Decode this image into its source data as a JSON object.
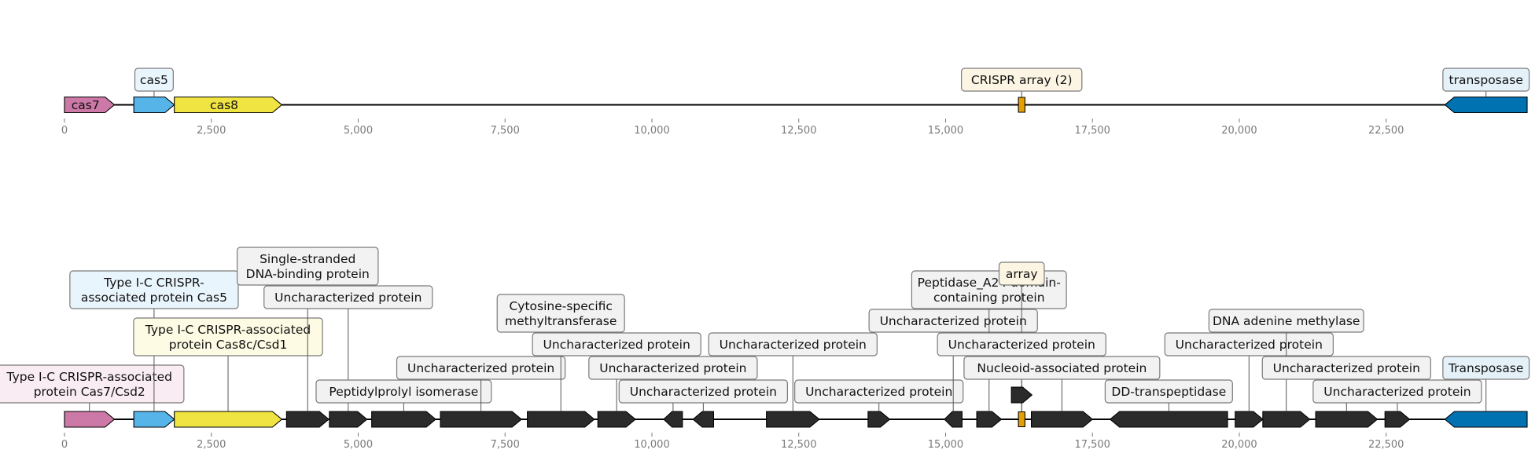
{
  "colors": {
    "cas7": "#cc79a7",
    "cas5": "#56b4e9",
    "cas8": "#f0e442",
    "crispr": "#e69f00",
    "transposase": "#0072b2",
    "other": "#2b2b2b",
    "box_cas7": "#f9ecf3",
    "box_cas5": "#e9f5fc",
    "box_cas8": "#fdfbe3",
    "box_crispr": "#fdf5e4",
    "box_transposase": "#e5f1f9",
    "box_other": "#f2f2f2"
  },
  "axis": {
    "ticks": [
      0,
      2500,
      5000,
      7500,
      10000,
      12500,
      15000,
      17500,
      20000,
      22500
    ],
    "tick_labels": [
      "0",
      "2,500",
      "5,000",
      "7,500",
      "10,000",
      "12,500",
      "15,000",
      "17,500",
      "20,000",
      "22,500"
    ]
  },
  "top_track": {
    "features": [
      {
        "id": "cas7",
        "start": 0,
        "end": 850,
        "strand": 1,
        "color": "cas7",
        "inner_label": "cas7"
      },
      {
        "id": "cas5",
        "start": 1180,
        "end": 1870,
        "strand": 1,
        "color": "cas5",
        "box_label": [
          "cas5"
        ],
        "box_color": "box_cas5",
        "level": 1
      },
      {
        "id": "cas8",
        "start": 1870,
        "end": 3700,
        "strand": 1,
        "color": "cas8",
        "inner_label": "cas8"
      },
      {
        "id": "crispr",
        "start": 16240,
        "end": 16350,
        "strand": 0,
        "color": "crispr",
        "box_label": [
          "CRISPR array (2)"
        ],
        "box_color": "box_crispr",
        "level": 1
      },
      {
        "id": "transposase",
        "start": 23500,
        "end": 24900,
        "strand": -1,
        "color": "transposase",
        "box_label": [
          "transposase"
        ],
        "box_color": "box_transposase",
        "level": 1
      }
    ]
  },
  "bottom_track": {
    "features": [
      {
        "id": "g-cas7",
        "start": 0,
        "end": 850,
        "strand": 1,
        "color": "cas7",
        "box_label": [
          "Type I-C CRISPR-associated",
          "protein Cas7/Csd2"
        ],
        "box_color": "box_cas7",
        "level": 1
      },
      {
        "id": "g-cas5",
        "start": 1180,
        "end": 1870,
        "strand": 1,
        "color": "cas5",
        "box_label": [
          "Type I-C CRISPR-",
          "associated protein Cas5"
        ],
        "box_color": "box_cas5",
        "level": 5
      },
      {
        "id": "g-cas8",
        "start": 1870,
        "end": 3700,
        "strand": 1,
        "color": "cas8",
        "box_label": [
          "Type I-C CRISPR-associated",
          "protein Cas8c/Csd1"
        ],
        "box_color": "box_cas8",
        "level": 3
      },
      {
        "id": "g-ssb",
        "start": 3780,
        "end": 4500,
        "strand": 1,
        "color": "other",
        "box_label": [
          "Single-stranded",
          "DNA-binding protein"
        ],
        "box_color": "box_other",
        "level": 6
      },
      {
        "id": "g-unc1",
        "start": 4510,
        "end": 5150,
        "strand": 1,
        "color": "other",
        "box_label": [
          "Uncharacterized protein"
        ],
        "box_color": "box_other",
        "level": 5
      },
      {
        "id": "g-ppi",
        "start": 5230,
        "end": 6320,
        "strand": 1,
        "color": "other",
        "box_label": [
          "Peptidylprolyl isomerase"
        ],
        "box_color": "box_other",
        "level": 1
      },
      {
        "id": "g-unc2",
        "start": 6400,
        "end": 7780,
        "strand": 1,
        "color": "other",
        "box_label": [
          "Uncharacterized protein"
        ],
        "box_color": "box_other",
        "level": 2
      },
      {
        "id": "g-mtase",
        "start": 7880,
        "end": 9020,
        "strand": 1,
        "color": "other",
        "box_label": [
          "Cytosine-specific",
          "methyltransferase"
        ],
        "box_color": "box_other",
        "level": 4
      },
      {
        "id": "g-unc3",
        "start": 9080,
        "end": 9720,
        "strand": 1,
        "color": "other",
        "box_label": [
          "Uncharacterized protein"
        ],
        "box_color": "box_other",
        "level": 3
      },
      {
        "id": "g-unc4",
        "start": 10200,
        "end": 10520,
        "strand": -1,
        "color": "other",
        "box_label": [
          "Uncharacterized protein"
        ],
        "box_color": "box_other",
        "level": 2
      },
      {
        "id": "g-unc5",
        "start": 10700,
        "end": 11050,
        "strand": -1,
        "color": "other",
        "box_label": [
          "Uncharacterized protein"
        ],
        "box_color": "box_other",
        "level": 1
      },
      {
        "id": "g-unc6",
        "start": 11950,
        "end": 12850,
        "strand": 1,
        "color": "other",
        "box_label": [
          "Uncharacterized protein"
        ],
        "box_color": "box_other",
        "level": 3
      },
      {
        "id": "g-unc7",
        "start": 13680,
        "end": 14050,
        "strand": 1,
        "color": "other",
        "box_label": [
          "Uncharacterized protein"
        ],
        "box_color": "box_other",
        "level": 1
      },
      {
        "id": "g-unc8",
        "start": 14980,
        "end": 15280,
        "strand": -1,
        "color": "other",
        "box_label": [
          "Uncharacterized protein"
        ],
        "box_color": "box_other",
        "level": 4
      },
      {
        "id": "g-pepA24",
        "start": 15530,
        "end": 15950,
        "strand": 1,
        "color": "other",
        "box_label": [
          "Peptidase_A24 domain-",
          "containing protein"
        ],
        "box_color": "box_other",
        "level": 5
      },
      {
        "id": "g-array",
        "start": 16240,
        "end": 16350,
        "strand": 0,
        "color": "crispr",
        "box_label": [
          "array"
        ],
        "box_color": "box_crispr",
        "level": 6
      },
      {
        "id": "g-unc9",
        "start": 16240,
        "end": 16350,
        "strand": 0,
        "color": "other",
        "box_label": [
          "Uncharacterized protein"
        ],
        "box_color": "box_other",
        "level": 3,
        "no_feature": true
      },
      {
        "id": "g-nap",
        "start": 16460,
        "end": 17500,
        "strand": 1,
        "color": "other",
        "box_label": [
          "Nucleoid-associated protein"
        ],
        "box_color": "box_other",
        "level": 2
      },
      {
        "id": "g-small",
        "start": 16120,
        "end": 16470,
        "strand": 1,
        "color": "other",
        "row": "raised"
      },
      {
        "id": "g-ddtp",
        "start": 17800,
        "end": 19800,
        "strand": -1,
        "color": "other",
        "box_label": [
          "DD-transpeptidase"
        ],
        "box_color": "box_other",
        "level": 1
      },
      {
        "id": "g-unc10",
        "start": 19930,
        "end": 20400,
        "strand": 1,
        "color": "other",
        "box_label": [
          "Uncharacterized protein"
        ],
        "box_color": "box_other",
        "level": 3
      },
      {
        "id": "g-dam",
        "start": 20400,
        "end": 21200,
        "strand": 1,
        "color": "other",
        "box_label": [
          "DNA adenine methylase"
        ],
        "box_color": "box_other",
        "level": 4
      },
      {
        "id": "g-unc11",
        "start": 21300,
        "end": 22350,
        "strand": 1,
        "color": "other",
        "box_label": [
          "Uncharacterized protein"
        ],
        "box_color": "box_other",
        "level": 2
      },
      {
        "id": "g-unc12",
        "start": 22480,
        "end": 22900,
        "strand": 1,
        "color": "other",
        "box_label": [
          "Uncharacterized protein"
        ],
        "box_color": "box_other",
        "level": 1
      },
      {
        "id": "g-transposase",
        "start": 23500,
        "end": 24900,
        "strand": -1,
        "color": "transposase",
        "box_label": [
          "Transposase"
        ],
        "box_color": "box_transposase",
        "level": 2
      }
    ]
  }
}
